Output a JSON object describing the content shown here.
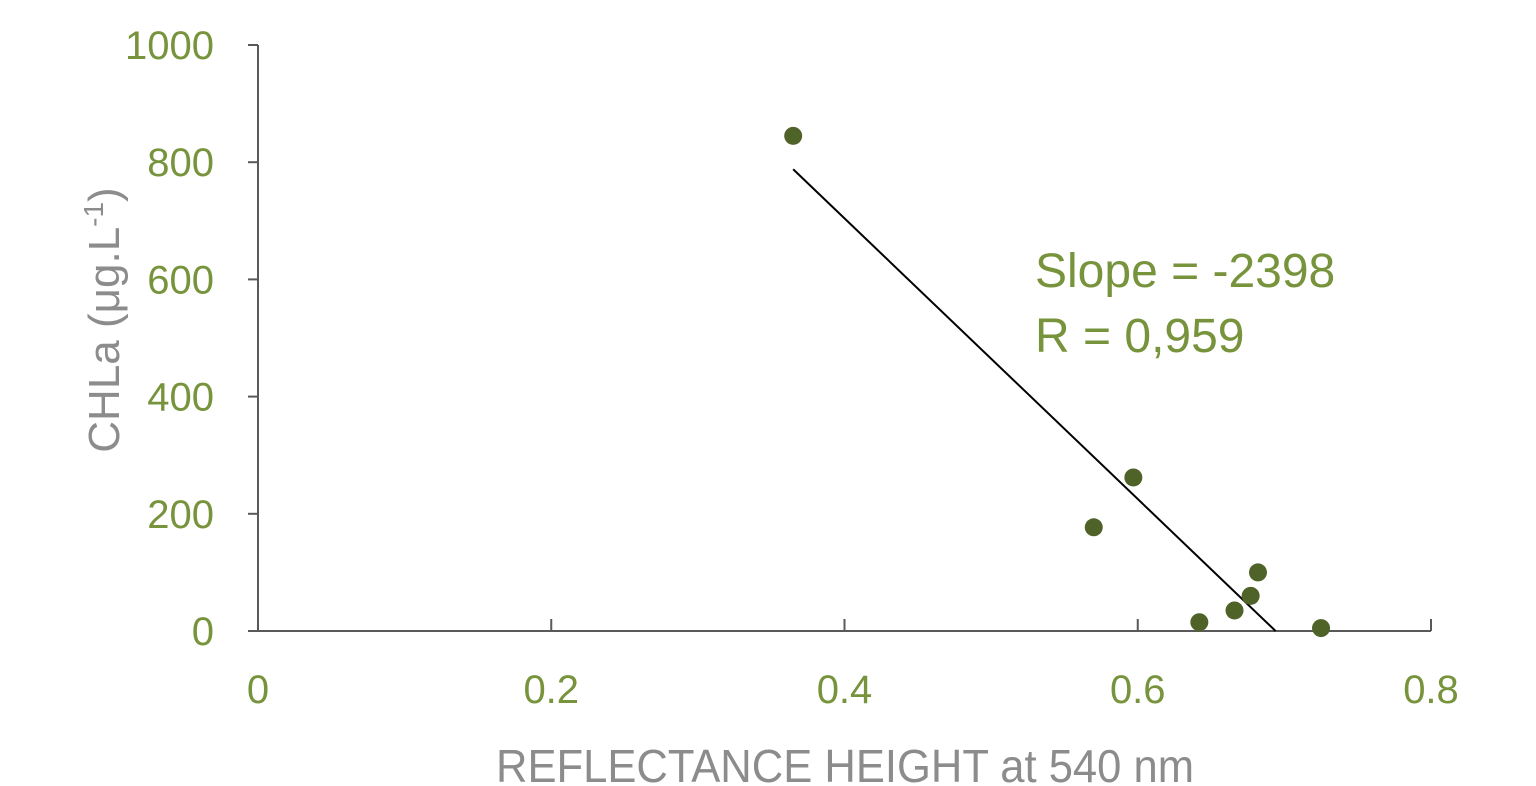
{
  "chart_data": {
    "type": "scatter",
    "title": "",
    "xlabel": "REFLECTANCE HEIGHT at 540 nm",
    "ylabel": {
      "main": "CHLa (μg.L",
      "sup": "-1",
      "close": ")"
    },
    "xlim": [
      0,
      0.8
    ],
    "ylim": [
      0,
      1000
    ],
    "xticks": [
      0,
      0.2,
      0.4,
      0.6,
      0.8
    ],
    "xtick_labels": [
      "0",
      "0.2",
      "0.4",
      "0.6",
      "0.8"
    ],
    "yticks": [
      0,
      200,
      400,
      600,
      800,
      1000
    ],
    "ytick_labels": [
      "0",
      "200",
      "400",
      "600",
      "800",
      "1000"
    ],
    "grid": false,
    "points": [
      {
        "x": 0.365,
        "y": 845
      },
      {
        "x": 0.57,
        "y": 177
      },
      {
        "x": 0.597,
        "y": 262
      },
      {
        "x": 0.642,
        "y": 15
      },
      {
        "x": 0.666,
        "y": 35
      },
      {
        "x": 0.677,
        "y": 60
      },
      {
        "x": 0.682,
        "y": 100
      },
      {
        "x": 0.725,
        "y": 5
      }
    ],
    "trendline": {
      "x": [
        0.365,
        0.694
      ],
      "y": [
        788,
        0
      ]
    },
    "annotations": [
      "Slope = -2398",
      "R = 0,959"
    ],
    "colors": {
      "points": "#4f6228",
      "tick_labels": "#77933c",
      "axis_titles": "#8c8c8c",
      "trendline": "#000000"
    }
  }
}
